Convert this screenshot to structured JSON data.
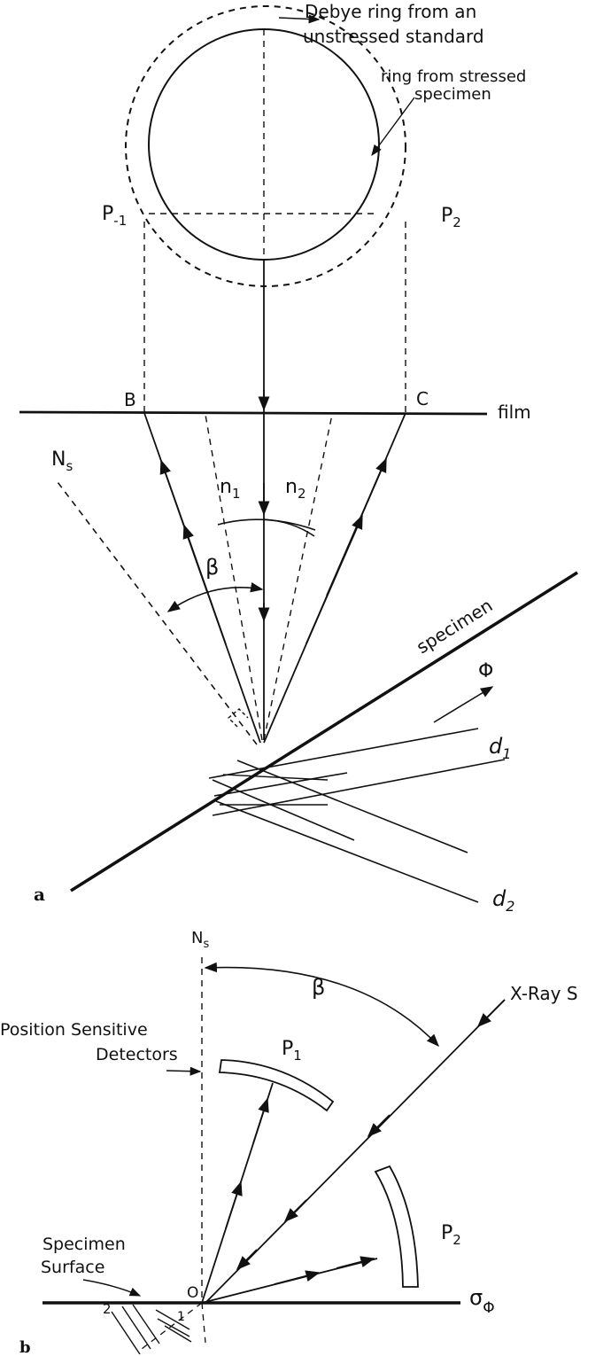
{
  "part_a": {
    "panel_label": "a",
    "debye_label_line1": "Debye ring from an",
    "debye_label_line2": "unstressed standard",
    "stressed_label_line1": "ring from stressed",
    "stressed_label_line2": "specimen",
    "p_minus1": "P",
    "p_minus1_sub": "-1",
    "p2": "P",
    "p2_sub": "2",
    "point_b": "B",
    "point_c": "C",
    "film_label": "film",
    "normal_label": "N",
    "normal_sub": "s",
    "n1": "n",
    "n1_sub": "1",
    "n2": "n",
    "n2_sub": "2",
    "beta": "β",
    "specimen_label": "specimen",
    "phi": "Φ",
    "d1": "d",
    "d1_sub": "1",
    "d2": "d",
    "d2_sub": "2"
  },
  "part_b": {
    "panel_label": "b",
    "normal_label": "N",
    "normal_sub": "s",
    "beta": "β",
    "xray_label": "X-Ray S",
    "detectors_line1": "Position Sensitive",
    "detectors_line2": "Detectors",
    "p1": "P",
    "p1_sub": "1",
    "p2": "P",
    "p2_sub": "2",
    "surface_line1": "Specimen",
    "surface_line2": "Surface",
    "origin": "O",
    "plane_1": "1",
    "plane_2": "2",
    "sigma": "σ",
    "sigma_sub": "Φ"
  }
}
